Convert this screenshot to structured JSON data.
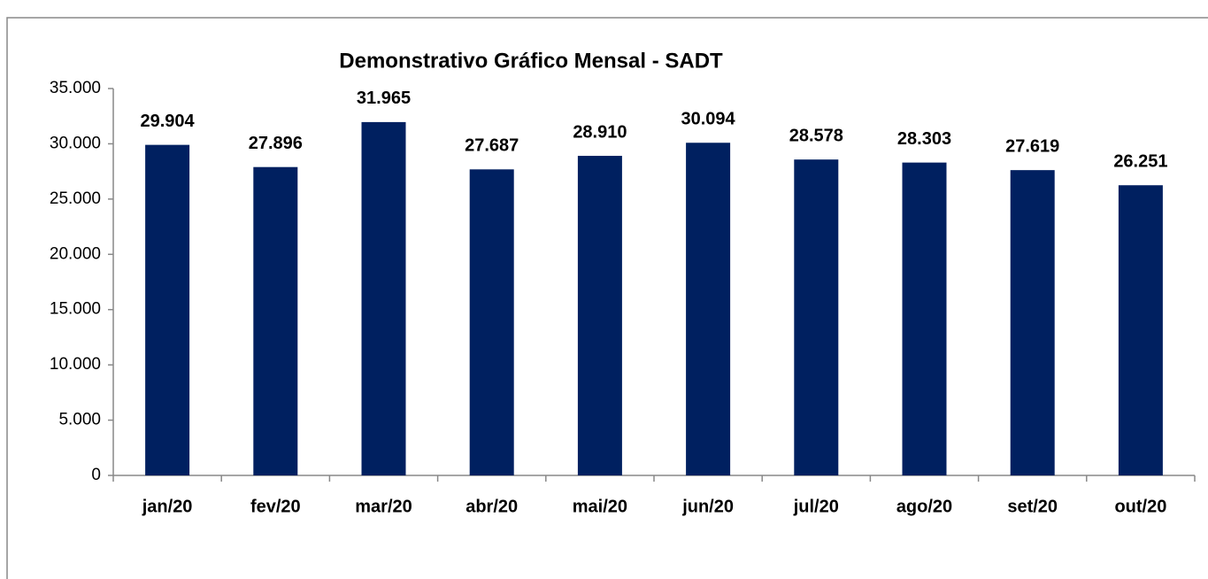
{
  "chart_data": {
    "type": "bar",
    "title": "Demonstrativo Gráfico Mensal - SADT",
    "categories": [
      "jan/20",
      "fev/20",
      "mar/20",
      "abr/20",
      "mai/20",
      "jun/20",
      "jul/20",
      "ago/20",
      "set/20",
      "out/20"
    ],
    "values": [
      29904,
      27896,
      31965,
      27687,
      28910,
      30094,
      28578,
      28303,
      27619,
      26251
    ],
    "value_labels": [
      "29.904",
      "27.896",
      "31.965",
      "27.687",
      "28.910",
      "30.094",
      "28.578",
      "28.303",
      "27.619",
      "26.251"
    ],
    "color": "#002060",
    "ylim": [
      0,
      35000
    ],
    "yticks": [
      0,
      {
        "value": 5000,
        "label": "5.000"
      },
      {
        "value": 10000,
        "label": "10.000"
      },
      {
        "value": 15000,
        "label": "15.000"
      },
      {
        "value": 20000,
        "label": "20.000"
      },
      {
        "value": 25000,
        "label": "25.000"
      },
      {
        "value": 30000,
        "label": "30.000"
      },
      {
        "value": 35000,
        "label": "35.000"
      }
    ],
    "grid": false
  }
}
